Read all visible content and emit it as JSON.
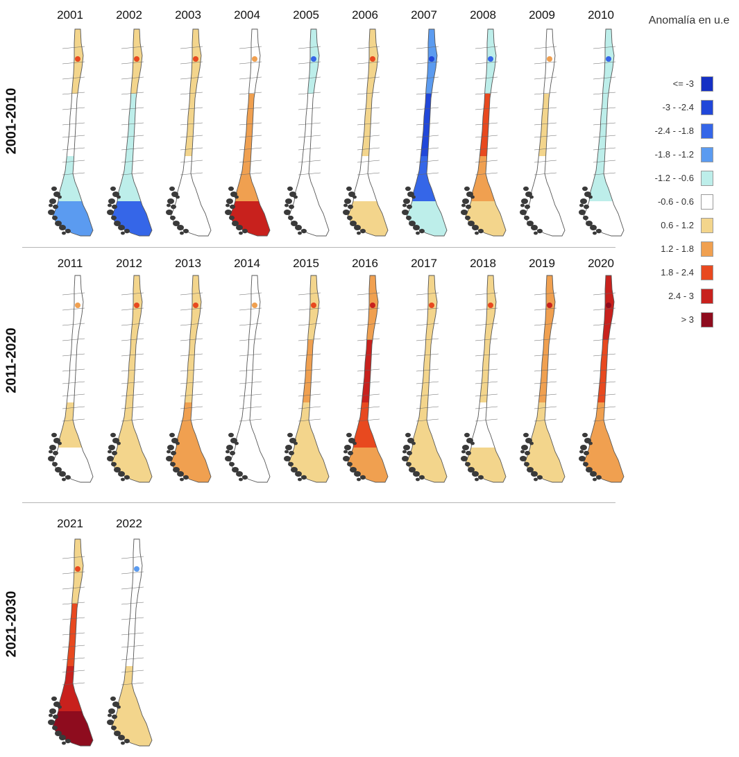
{
  "decades": [
    {
      "label": "2001-2010",
      "years": [
        {
          "year": "2001",
          "anomaly": {
            "north": 0.7,
            "center": 0.3,
            "south": -0.7,
            "far_south": -1.6
          }
        },
        {
          "year": "2002",
          "anomaly": {
            "north": 0.7,
            "center": -0.8,
            "south": -0.9,
            "far_south": -1.9
          }
        },
        {
          "year": "2003",
          "anomaly": {
            "north": 0.8,
            "center": 0.9,
            "south": 0.5,
            "far_south": 0.2
          }
        },
        {
          "year": "2004",
          "anomaly": {
            "north": 0.3,
            "center": 1.3,
            "south": 1.6,
            "far_south": 2.8
          }
        },
        {
          "year": "2005",
          "anomaly": {
            "north": -0.8,
            "center": 0.2,
            "south": -0.3,
            "far_south": 0.3
          }
        },
        {
          "year": "2006",
          "anomaly": {
            "north": 1.0,
            "center": 0.9,
            "south": 0.4,
            "far_south": 0.8
          }
        },
        {
          "year": "2007",
          "anomaly": {
            "north": -1.2,
            "center": -2.5,
            "south": -2.2,
            "far_south": -0.7
          }
        },
        {
          "year": "2008",
          "anomaly": {
            "north": -0.8,
            "center": 2.2,
            "south": 1.4,
            "far_south": 0.9
          }
        },
        {
          "year": "2009",
          "anomaly": {
            "north": 0.2,
            "center": 0.7,
            "south": 0.1,
            "far_south": -0.2
          }
        },
        {
          "year": "2010",
          "anomaly": {
            "north": -0.9,
            "center": -1.0,
            "south": -0.9,
            "far_south": -0.3
          }
        }
      ]
    },
    {
      "label": "2011-2020",
      "years": [
        {
          "year": "2011",
          "anomaly": {
            "north": 0.2,
            "center": 0.5,
            "south": 0.7,
            "far_south": 0.3
          }
        },
        {
          "year": "2012",
          "anomaly": {
            "north": 1.0,
            "center": 0.9,
            "south": 0.9,
            "far_south": 0.9
          }
        },
        {
          "year": "2013",
          "anomaly": {
            "north": 0.8,
            "center": 0.8,
            "south": 1.4,
            "far_south": 1.7
          }
        },
        {
          "year": "2014",
          "anomaly": {
            "north": 0.3,
            "center": 0.3,
            "south": 0.2,
            "far_south": 0.2
          }
        },
        {
          "year": "2015",
          "anomaly": {
            "north": 1.0,
            "center": 1.3,
            "south": 0.9,
            "far_south": 1.2
          }
        },
        {
          "year": "2016",
          "anomaly": {
            "north": 1.6,
            "center": 2.5,
            "south": 2.2,
            "far_south": 1.6
          }
        },
        {
          "year": "2017",
          "anomaly": {
            "north": 0.9,
            "center": 0.9,
            "south": 0.8,
            "far_south": 0.9
          }
        },
        {
          "year": "2018",
          "anomaly": {
            "north": 0.9,
            "center": 0.7,
            "south": 0.4,
            "far_south": 0.8
          }
        },
        {
          "year": "2019",
          "anomaly": {
            "north": 1.3,
            "center": 1.5,
            "south": 0.8,
            "far_south": 0.9
          }
        },
        {
          "year": "2020",
          "anomaly": {
            "north": 2.5,
            "center": 2.0,
            "south": 1.5,
            "far_south": 1.3
          }
        }
      ]
    },
    {
      "label": "2021-2030",
      "years": [
        {
          "year": "2021",
          "anomaly": {
            "north": 1.2,
            "center": 2.0,
            "south": 2.6,
            "far_south": 3.2
          }
        },
        {
          "year": "2022",
          "anomaly": {
            "north": -0.3,
            "center": 0.4,
            "south": 0.8,
            "far_south": 0.9
          }
        }
      ]
    }
  ],
  "legend": {
    "title": "Anomalía en u.e",
    "items": [
      {
        "label": "<= -3",
        "color": "#1530c4"
      },
      {
        "label": "-3 - -2.4",
        "color": "#2147d9"
      },
      {
        "label": "-2.4 - -1.8",
        "color": "#3566e8"
      },
      {
        "label": "-1.8 - -1.2",
        "color": "#5b9bf0"
      },
      {
        "label": "-1.2 - -0.6",
        "color": "#bdeeea"
      },
      {
        "label": "-0.6 - 0.6",
        "color": "#ffffff"
      },
      {
        "label": "0.6 - 1.2",
        "color": "#f3d58c"
      },
      {
        "label": "1.2 - 1.8",
        "color": "#f0a050"
      },
      {
        "label": "1.8 - 2.4",
        "color": "#e8491f"
      },
      {
        "label": "2.4 - 3",
        "color": "#c8211d"
      },
      {
        "label": "> 3",
        "color": "#8e0c1e"
      }
    ]
  },
  "colors": {
    "archipelago": "#3a3a3a",
    "outline": "#555555",
    "divider": "#b5b5b5"
  }
}
